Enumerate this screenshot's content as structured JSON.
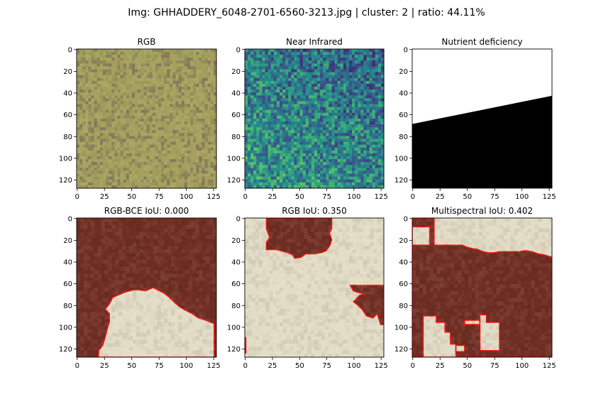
{
  "figure": {
    "title": "Img: GHHADDERY_6048-2701-6560-3213.jpg | cluster: 2 | ratio: 44.11%"
  },
  "chart_data": [
    {
      "type": "heatmap",
      "title": "RGB",
      "image_size": [
        128,
        128
      ],
      "xlim": [
        0,
        127
      ],
      "ylim": [
        127,
        0
      ],
      "xticks": [
        "0",
        "25",
        "50",
        "75",
        "100",
        "125"
      ],
      "yticks": [
        "0",
        "20",
        "40",
        "60",
        "80",
        "100",
        "120"
      ],
      "content": "noisy olive-green field texture",
      "colors": {
        "base": "#9e9a5a",
        "light": "#b6b26c",
        "dark": "#7d6c5b"
      }
    },
    {
      "type": "heatmap",
      "title": "Near Infrared",
      "image_size": [
        128,
        128
      ],
      "xlim": [
        0,
        127
      ],
      "ylim": [
        127,
        0
      ],
      "xticks": [
        "0",
        "25",
        "50",
        "75",
        "100",
        "125"
      ],
      "yticks": [
        "0",
        "20",
        "40",
        "60",
        "80",
        "100",
        "120"
      ],
      "colormap": "viridis",
      "content": "noisy single-band intensity, higher values toward bottom-left"
    },
    {
      "type": "heatmap",
      "title": "Nutrient deficiency",
      "image_size": [
        128,
        128
      ],
      "xlim": [
        0,
        127
      ],
      "ylim": [
        127,
        0
      ],
      "xticks": [
        "0",
        "25",
        "50",
        "75",
        "100",
        "125"
      ],
      "yticks": [
        "0",
        "20",
        "40",
        "60",
        "80",
        "100",
        "120"
      ],
      "mask_boundary_line": {
        "x": [
          0,
          127
        ],
        "y": [
          69,
          43
        ]
      },
      "upper_color": "#ffffff",
      "lower_color": "#000000"
    },
    {
      "type": "heatmap",
      "title": "RGB-BCE IoU: 0.000",
      "iou": 0.0,
      "image_size": [
        128,
        128
      ],
      "xlim": [
        0,
        127
      ],
      "ylim": [
        127,
        0
      ],
      "xticks": [
        "0",
        "25",
        "50",
        "75",
        "100",
        "125"
      ],
      "yticks": [
        "0",
        "20",
        "40",
        "60",
        "80",
        "100",
        "120"
      ],
      "colors": {
        "predicted": "#e3dcc6",
        "background": "#722f23",
        "contour": "#ee1111"
      },
      "predicted_regions": [
        [
          [
            20,
            128
          ],
          [
            20,
            122
          ],
          [
            24,
            117
          ],
          [
            26,
            110
          ],
          [
            28,
            102
          ],
          [
            30,
            95
          ],
          [
            30,
            88
          ],
          [
            26,
            84
          ],
          [
            30,
            79
          ],
          [
            33,
            73
          ],
          [
            40,
            70
          ],
          [
            45,
            68
          ],
          [
            52,
            66
          ],
          [
            57,
            66
          ],
          [
            63,
            67
          ],
          [
            70,
            64
          ],
          [
            74,
            66
          ],
          [
            80,
            69
          ],
          [
            85,
            73
          ],
          [
            90,
            78
          ],
          [
            95,
            82
          ],
          [
            100,
            85
          ],
          [
            106,
            88
          ],
          [
            112,
            92
          ],
          [
            118,
            94
          ],
          [
            123,
            96
          ],
          [
            126,
            97
          ],
          [
            126,
            128
          ]
        ]
      ]
    },
    {
      "type": "heatmap",
      "title": "RGB IoU: 0.350",
      "iou": 0.35,
      "image_size": [
        128,
        128
      ],
      "xlim": [
        0,
        127
      ],
      "ylim": [
        127,
        0
      ],
      "xticks": [
        "0",
        "25",
        "50",
        "75",
        "100",
        "125"
      ],
      "yticks": [
        "0",
        "20",
        "40",
        "60",
        "80",
        "100",
        "120"
      ],
      "colors": {
        "predicted": "#e3dcc6",
        "background": "#722f23",
        "contour": "#ee1111"
      },
      "background_regions": [
        [
          [
            20,
            0
          ],
          [
            80,
            0
          ],
          [
            80,
            10
          ],
          [
            78,
            14
          ],
          [
            80,
            20
          ],
          [
            78,
            26
          ],
          [
            75,
            30
          ],
          [
            70,
            32
          ],
          [
            63,
            33
          ],
          [
            56,
            33
          ],
          [
            52,
            36
          ],
          [
            46,
            37
          ],
          [
            44,
            34
          ],
          [
            40,
            32
          ],
          [
            33,
            30
          ],
          [
            28,
            29
          ],
          [
            20,
            29
          ],
          [
            20,
            22
          ],
          [
            23,
            18
          ],
          [
            20,
            10
          ]
        ],
        [
          [
            97,
            62
          ],
          [
            128,
            62
          ],
          [
            128,
            98
          ],
          [
            125,
            98
          ],
          [
            122,
            88
          ],
          [
            118,
            92
          ],
          [
            112,
            90
          ],
          [
            108,
            84
          ],
          [
            104,
            80
          ],
          [
            100,
            77
          ],
          [
            106,
            71
          ],
          [
            110,
            70
          ],
          [
            100,
            67
          ]
        ],
        [
          [
            0,
            110
          ],
          [
            1,
            110
          ],
          [
            1,
            124
          ],
          [
            0,
            124
          ]
        ]
      ]
    },
    {
      "type": "heatmap",
      "title": "Multispectral IoU: 0.402",
      "iou": 0.402,
      "image_size": [
        128,
        128
      ],
      "xlim": [
        0,
        127
      ],
      "ylim": [
        127,
        0
      ],
      "xticks": [
        "0",
        "25",
        "50",
        "75",
        "100",
        "125"
      ],
      "yticks": [
        "0",
        "20",
        "40",
        "60",
        "80",
        "100",
        "120"
      ],
      "colors": {
        "predicted": "#e3dcc6",
        "background": "#722f23",
        "contour": "#ee1111"
      },
      "background_regions": [
        [
          [
            0,
            0
          ],
          [
            20,
            0
          ],
          [
            20,
            25
          ],
          [
            46,
            25
          ],
          [
            50,
            27
          ],
          [
            55,
            28
          ],
          [
            60,
            29
          ],
          [
            65,
            31
          ],
          [
            70,
            32
          ],
          [
            75,
            32
          ],
          [
            80,
            31
          ],
          [
            90,
            31
          ],
          [
            98,
            31
          ],
          [
            104,
            30
          ],
          [
            110,
            31
          ],
          [
            115,
            33
          ],
          [
            121,
            34
          ],
          [
            128,
            36
          ],
          [
            128,
            128
          ],
          [
            0,
            128
          ]
        ]
      ],
      "predicted_regions": [
        [
          [
            0,
            8
          ],
          [
            16,
            8
          ],
          [
            16,
            25
          ],
          [
            0,
            25
          ]
        ],
        [
          [
            10,
            90
          ],
          [
            22,
            90
          ],
          [
            22,
            96
          ],
          [
            30,
            96
          ],
          [
            30,
            105
          ],
          [
            35,
            105
          ],
          [
            35,
            116
          ],
          [
            40,
            116
          ],
          [
            40,
            128
          ],
          [
            10,
            128
          ]
        ],
        [
          [
            48,
            94
          ],
          [
            62,
            94
          ],
          [
            62,
            98
          ],
          [
            48,
            98
          ]
        ],
        [
          [
            62,
            89
          ],
          [
            68,
            89
          ],
          [
            68,
            96
          ],
          [
            80,
            96
          ],
          [
            80,
            122
          ],
          [
            62,
            122
          ]
        ],
        [
          [
            40,
            117
          ],
          [
            48,
            117
          ],
          [
            48,
            123
          ],
          [
            40,
            123
          ]
        ]
      ]
    }
  ]
}
